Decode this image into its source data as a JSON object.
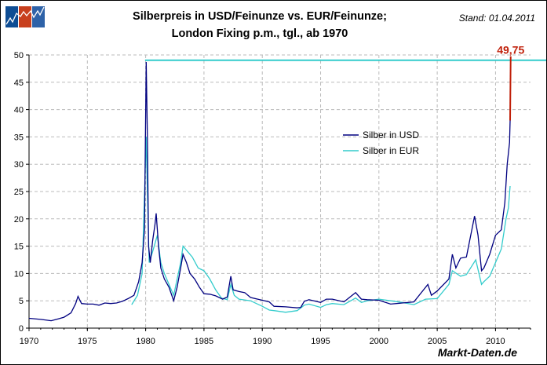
{
  "title_line1": "Silberpreis in USD/Feinunze vs. EUR/Feinunze;",
  "title_line2": "London Fixing p.m., tgl., ab 1970",
  "stand": "Stand: 01.04.2011",
  "brand": "Markt-Daten.de",
  "logo": {
    "colors": [
      "#0e4d94",
      "#c8401e",
      "#2e62a8"
    ]
  },
  "chart_data": {
    "type": "line",
    "xlim": [
      1970,
      2013
    ],
    "ylim": [
      0,
      50
    ],
    "grid": true,
    "legend_placement": "center-right",
    "x_ticks": [
      "1970",
      "1975",
      "1980",
      "1985",
      "1990",
      "1995",
      "2000",
      "2005",
      "2010"
    ],
    "y_ticks": [
      "0",
      "5",
      "10",
      "15",
      "20",
      "25",
      "30",
      "35",
      "40",
      "45",
      "50"
    ],
    "reference_line": {
      "value": 49.75,
      "label": "49,75",
      "color": "#33cccc",
      "label_color": "#c0200a"
    },
    "latest_move": {
      "x": [
        2011.25,
        2011.3
      ],
      "y": [
        38,
        49.75
      ],
      "color": "#c0200a"
    },
    "series": [
      {
        "name": "Silber in USD",
        "color": "#000080",
        "x": [
          1970,
          1971,
          1971.9,
          1972.5,
          1973,
          1973.6,
          1974.0,
          1974.2,
          1974.5,
          1975,
          1975.5,
          1976,
          1976.5,
          1977,
          1977.5,
          1978,
          1978.5,
          1979,
          1979.4,
          1979.7,
          1979.9,
          1980.05,
          1980.15,
          1980.25,
          1980.4,
          1980.6,
          1980.8,
          1980.9,
          1981.1,
          1981.3,
          1981.6,
          1982,
          1982.4,
          1982.7,
          1983.0,
          1983.2,
          1983.5,
          1983.8,
          1984.2,
          1984.6,
          1985,
          1985.5,
          1986,
          1986.6,
          1987.0,
          1987.3,
          1987.5,
          1988,
          1988.5,
          1989,
          1990,
          1990.6,
          1991,
          1992,
          1993,
          1993.3,
          1993.6,
          1994,
          1995,
          1995.5,
          1996,
          1997,
          1998.0,
          1998.5,
          1999,
          2000,
          2001,
          2002,
          2003,
          2004.2,
          2004.5,
          2005,
          2006.0,
          2006.3,
          2006.6,
          2007,
          2007.5,
          2008.2,
          2008.5,
          2008.8,
          2009.0,
          2009.5,
          2010.0,
          2010.5,
          2010.8,
          2011.0,
          2011.2,
          2011.25
        ],
        "y": [
          1.8,
          1.6,
          1.35,
          1.7,
          2.0,
          2.8,
          4.5,
          5.8,
          4.5,
          4.4,
          4.4,
          4.2,
          4.6,
          4.5,
          4.6,
          4.9,
          5.4,
          6.0,
          8.5,
          12,
          18,
          48.7,
          35,
          15,
          12,
          16,
          19,
          21,
          15,
          11,
          9,
          7.5,
          5,
          7.5,
          11,
          13.5,
          12,
          10,
          9,
          7.5,
          6.3,
          6.2,
          5.9,
          5.3,
          5.7,
          9.5,
          7,
          6.7,
          6.5,
          5.6,
          5.1,
          4.8,
          4.0,
          3.9,
          3.7,
          3.8,
          4.9,
          5.2,
          4.7,
          5.3,
          5.3,
          4.8,
          6.5,
          5.3,
          5.2,
          5.1,
          4.4,
          4.6,
          4.8,
          8.0,
          6.0,
          6.8,
          9,
          13.5,
          11,
          12.8,
          13,
          20.5,
          17,
          10.5,
          11,
          13.5,
          17,
          18,
          23,
          30,
          34,
          38
        ]
      },
      {
        "name": "Silber in EUR",
        "color": "#33cccc",
        "x": [
          1978.8,
          1979.3,
          1979.7,
          1980.05,
          1980.15,
          1980.3,
          1980.6,
          1981,
          1981.3,
          1981.6,
          1982,
          1982.4,
          1983.0,
          1983.2,
          1983.6,
          1984,
          1984.5,
          1985,
          1985.5,
          1986,
          1986.5,
          1987,
          1987.3,
          1987.6,
          1988,
          1989,
          1990,
          1990.6,
          1991,
          1992,
          1993,
          1993.6,
          1994,
          1995,
          1995.5,
          1996,
          1997,
          1998,
          1998.5,
          1999,
          2000,
          2001,
          2002,
          2003,
          2004,
          2005,
          2006,
          2006.3,
          2007,
          2007.5,
          2008.3,
          2008.8,
          2009,
          2009.5,
          2010,
          2010.5,
          2010.9,
          2011.1,
          2011.25
        ],
        "y": [
          4.3,
          6,
          10,
          35,
          25,
          12,
          14,
          17,
          12,
          10,
          8,
          6,
          12,
          15,
          14,
          13,
          11,
          10.5,
          9,
          7,
          5.5,
          5.2,
          8,
          6,
          5.3,
          5,
          4.0,
          3.3,
          3.2,
          2.9,
          3.2,
          4.2,
          4.4,
          3.8,
          4.3,
          4.5,
          4.3,
          5.5,
          4.7,
          5.0,
          5.3,
          5.0,
          4.7,
          4.3,
          5.3,
          5.4,
          8,
          10.5,
          9.5,
          9.8,
          12.5,
          8,
          8.5,
          9.5,
          12,
          14.5,
          20,
          22,
          26
        ]
      }
    ]
  }
}
